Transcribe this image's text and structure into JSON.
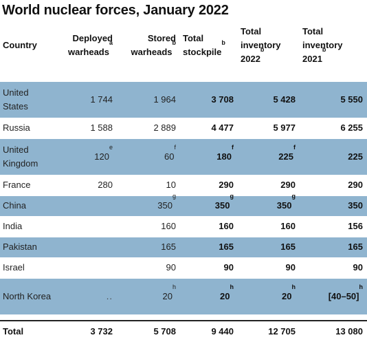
{
  "title": "World nuclear forces, January 2022",
  "columns": [
    {
      "label": "Country",
      "sup": ""
    },
    {
      "label": "Deployed warheads",
      "sup": "a"
    },
    {
      "label": "Stored warheads",
      "sup": "b"
    },
    {
      "label": "Total stockpile",
      "sup": "b"
    },
    {
      "label": "Total inventory 2022",
      "sup": "b"
    },
    {
      "label": "Total inventory 2021",
      "sup": "b"
    }
  ],
  "rows": [
    {
      "country": "United States",
      "deployed": "1 744",
      "deployed_sup": "",
      "stored": "1 964",
      "stored_sup": "",
      "stockpile": "3 708",
      "stockpile_sup": "",
      "inv2022": "5 428",
      "inv2022_sup": "",
      "inv2021": "5 550",
      "inv2021_sup": ""
    },
    {
      "country": "Russia",
      "deployed": "1 588",
      "deployed_sup": "",
      "stored": "2 889",
      "stored_sup": "",
      "stockpile": "4 477",
      "stockpile_sup": "",
      "inv2022": "5 977",
      "inv2022_sup": "",
      "inv2021": "6 255",
      "inv2021_sup": ""
    },
    {
      "country": "United Kingdom",
      "deployed": "120",
      "deployed_sup": "e",
      "stored": "60",
      "stored_sup": "f",
      "stockpile": "180",
      "stockpile_sup": "f",
      "inv2022": "225",
      "inv2022_sup": "f",
      "inv2021": "225",
      "inv2021_sup": ""
    },
    {
      "country": "France",
      "deployed": "280",
      "deployed_sup": "",
      "stored": "10",
      "stored_sup": "",
      "stockpile": "290",
      "stockpile_sup": "",
      "inv2022": "290",
      "inv2022_sup": "",
      "inv2021": "290",
      "inv2021_sup": ""
    },
    {
      "country": "China",
      "deployed": "",
      "deployed_sup": "",
      "stored": "350",
      "stored_sup": "g",
      "stockpile": "350",
      "stockpile_sup": "g",
      "inv2022": "350",
      "inv2022_sup": "g",
      "inv2021": "350",
      "inv2021_sup": ""
    },
    {
      "country": "India",
      "deployed": "",
      "deployed_sup": "",
      "stored": "160",
      "stored_sup": "",
      "stockpile": "160",
      "stockpile_sup": "",
      "inv2022": "160",
      "inv2022_sup": "",
      "inv2021": "156",
      "inv2021_sup": ""
    },
    {
      "country": "Pakistan",
      "deployed": "",
      "deployed_sup": "",
      "stored": "165",
      "stored_sup": "",
      "stockpile": "165",
      "stockpile_sup": "",
      "inv2022": "165",
      "inv2022_sup": "",
      "inv2021": "165",
      "inv2021_sup": ""
    },
    {
      "country": "Israel",
      "deployed": "",
      "deployed_sup": "",
      "stored": "90",
      "stored_sup": "",
      "stockpile": "90",
      "stockpile_sup": "",
      "inv2022": "90",
      "inv2022_sup": "",
      "inv2021": "90",
      "inv2021_sup": ""
    },
    {
      "country": "North Korea",
      "deployed": "..",
      "deployed_sup": "",
      "stored": "20",
      "stored_sup": "h",
      "stockpile": "20",
      "stockpile_sup": "h",
      "inv2022": "20",
      "inv2022_sup": "h",
      "inv2021": "[40–50]",
      "inv2021_sup": "h"
    }
  ],
  "total": {
    "label": "Total",
    "deployed": "3 732",
    "stored": "5 708",
    "stockpile": "9 440",
    "inv2022": "12 705",
    "inv2021": "13 080"
  },
  "colors": {
    "row_shade": "#8fb4cf",
    "background": "#ffffff"
  }
}
